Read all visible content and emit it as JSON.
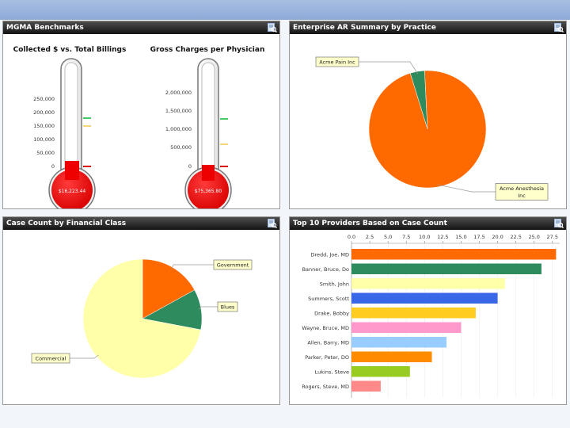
{
  "panels": {
    "mgma": {
      "title": "MGMA Benchmarks",
      "left_title": "Collected $ vs. Total Billings",
      "left_ticks": [
        "250,000",
        "200,000",
        "150,000",
        "100,000",
        "50,000",
        "0"
      ],
      "left_value": "$16,223.44",
      "right_title": "Gross Charges per Physician",
      "right_ticks": [
        "2,000,000",
        "1,500,000",
        "1,000,000",
        "500,000",
        "0"
      ],
      "right_value": "$75,365.80"
    },
    "ar": {
      "title": "Enterprise AR Summary by Practice"
    },
    "case_count": {
      "title": "Case Count by Financial Class"
    },
    "top10": {
      "title": "Top 10 Providers Based on Case Count"
    }
  },
  "chart_data": [
    {
      "type": "pie",
      "labels": [
        "Acme Pain Inc",
        "Acme Anesthesia Inc"
      ],
      "values": [
        4,
        96
      ],
      "colors": [
        "#2e8b5e",
        "#ff6a00"
      ]
    },
    {
      "type": "pie",
      "labels": [
        "Government",
        "Blues",
        "Commercial"
      ],
      "values": [
        17,
        11,
        72
      ],
      "colors": [
        "#ff6a00",
        "#2e8b5e",
        "#ffffaa"
      ]
    },
    {
      "type": "bar",
      "orientation": "horizontal",
      "categories": [
        "Dredd, Joe, MD",
        "Banner, Bruce, Do",
        "Smith, John",
        "Summers, Scott",
        "Drake, Bobby",
        "Wayne, Bruce, MD",
        "Allen, Barry, MD",
        "Parker, Peter, DO",
        "Lukins, Steve",
        "Rogers, Steve, MD"
      ],
      "values": [
        28,
        26,
        21,
        20,
        17,
        15,
        13,
        11,
        8,
        4
      ],
      "colors": [
        "#ff6a00",
        "#2e8b5e",
        "#ffffaa",
        "#3a66e8",
        "#ffcc22",
        "#ff99cc",
        "#99ccff",
        "#ff8c00",
        "#99cc22",
        "#ff8888"
      ],
      "xticks": [
        "0.0",
        "2.5",
        "5.0",
        "7.5",
        "10.0",
        "12.5",
        "15.0",
        "17.5",
        "20.0",
        "22.5",
        "25.0",
        "27.5"
      ],
      "xlim": [
        0,
        28.5
      ]
    }
  ]
}
